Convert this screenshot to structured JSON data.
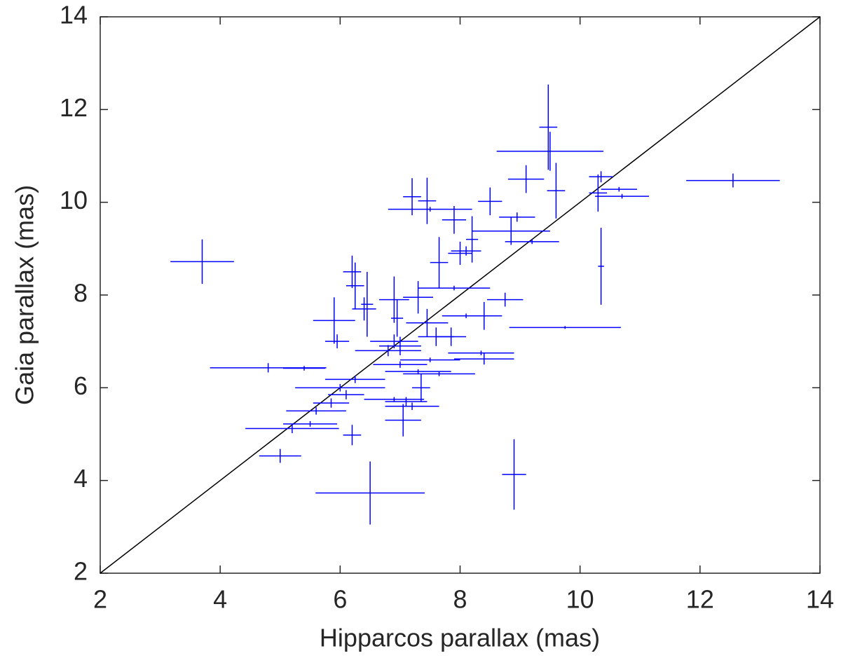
{
  "chart_data": {
    "type": "errorbar-scatter",
    "x_label": "Hipparcos parallax (mas)",
    "y_label": "Gaia parallax (mas)",
    "color": "#0000ff",
    "line_color": "#000000",
    "xlim": [
      2,
      14
    ],
    "ylim": [
      2,
      14
    ],
    "xticks": [
      2,
      4,
      6,
      8,
      10,
      12,
      14
    ],
    "yticks": [
      2,
      4,
      6,
      8,
      10,
      12,
      14
    ],
    "identity_line": {
      "x": [
        2,
        14
      ],
      "y": [
        2,
        14
      ]
    },
    "x": [
      3.7,
      12.55,
      6.5,
      8.9,
      9.47,
      9.5,
      10.35,
      9.75,
      4.8,
      5.4,
      5.0,
      5.2,
      5.5,
      6.2,
      7.05,
      5.6,
      5.85,
      6.1,
      6.0,
      6.25,
      7.1,
      7.2,
      6.9,
      7.35,
      7.3,
      7.65,
      7.0,
      7.5,
      8.4,
      8.35,
      6.8,
      7.0,
      6.9,
      5.95,
      5.9,
      6.45,
      6.2,
      6.25,
      6.4,
      6.9,
      6.95,
      7.3,
      7.45,
      7.6,
      7.85,
      7.9,
      7.65,
      7.9,
      8.0,
      8.1,
      8.2,
      8.5,
      8.85,
      8.75,
      8.4,
      8.1,
      7.2,
      7.45,
      7.5,
      9.1,
      8.95,
      9.6,
      9.2,
      10.35,
      10.3,
      10.65,
      10.7
    ],
    "y": [
      8.72,
      10.47,
      3.73,
      4.13,
      11.62,
      11.1,
      8.62,
      7.3,
      6.43,
      6.42,
      4.53,
      5.12,
      5.22,
      4.98,
      5.3,
      5.5,
      5.67,
      5.85,
      6.0,
      6.18,
      5.7,
      5.6,
      5.75,
      6.0,
      6.35,
      6.3,
      6.5,
      6.6,
      6.62,
      6.75,
      6.8,
      6.9,
      7.0,
      7.0,
      7.45,
      7.8,
      8.5,
      8.2,
      7.7,
      7.9,
      7.5,
      7.95,
      7.4,
      7.1,
      7.1,
      8.15,
      8.7,
      9.62,
      8.9,
      8.95,
      9.2,
      10.02,
      9.38,
      7.9,
      7.55,
      7.55,
      10.12,
      10.03,
      9.85,
      10.5,
      9.68,
      10.25,
      9.15,
      10.55,
      10.2,
      10.28,
      10.13
    ],
    "xerr": [
      0.53,
      0.78,
      0.91,
      0.2,
      0.15,
      0.89,
      0.05,
      0.93,
      0.97,
      0.35,
      0.35,
      0.78,
      0.45,
      0.15,
      0.3,
      0.5,
      0.3,
      0.3,
      0.75,
      0.5,
      0.35,
      0.45,
      0.5,
      0.15,
      0.55,
      0.6,
      0.45,
      0.5,
      0.5,
      0.55,
      0.55,
      0.35,
      0.4,
      0.2,
      0.35,
      0.1,
      0.15,
      0.15,
      0.2,
      0.25,
      0.1,
      0.25,
      0.35,
      0.3,
      0.25,
      0.6,
      0.15,
      0.2,
      0.2,
      0.25,
      0.1,
      0.2,
      0.65,
      0.3,
      0.3,
      0.4,
      0.15,
      0.15,
      0.7,
      0.3,
      0.3,
      0.15,
      0.45,
      0.2,
      0.15,
      0.3,
      0.45
    ],
    "yerr": [
      0.48,
      0.15,
      0.68,
      0.76,
      0.92,
      0.42,
      0.83,
      0.03,
      0.1,
      0.05,
      0.15,
      0.1,
      0.06,
      0.22,
      0.35,
      0.08,
      0.1,
      0.1,
      0.08,
      0.08,
      0.1,
      0.08,
      0.05,
      0.3,
      0.05,
      0.05,
      0.07,
      0.05,
      0.12,
      0.05,
      0.12,
      0.2,
      0.15,
      0.15,
      0.5,
      0.7,
      0.35,
      0.5,
      0.25,
      0.5,
      0.4,
      0.35,
      0.3,
      0.2,
      0.2,
      0.05,
      0.55,
      0.3,
      0.25,
      0.1,
      0.5,
      0.3,
      0.3,
      0.15,
      0.3,
      0.05,
      0.4,
      0.5,
      0.05,
      0.3,
      0.1,
      0.6,
      0.05,
      0.12,
      0.4,
      0.05,
      0.05
    ]
  }
}
